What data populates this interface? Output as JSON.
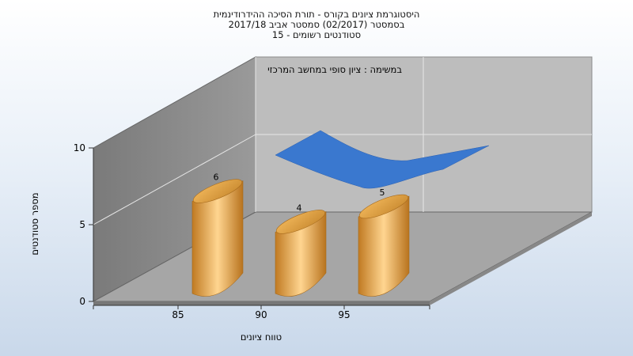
{
  "chart_data": {
    "type": "bar",
    "title_lines": [
      "היסטוגרמת ציונים בקורס - תורת הסיכה ההידרודינמית",
      "בסמסטר  (02/2017)  סמסטר אביב 2017/18",
      "סטודנטים רשומים - 15"
    ],
    "annotation": "במשימה : ציון סופי במחשב המרכזי",
    "xlabel": "טווח ציונים",
    "ylabel": "מספר סטודנטים",
    "categories": [
      "85",
      "90",
      "95"
    ],
    "values": [
      6,
      4,
      5
    ],
    "curve": {
      "x": [
        82,
        86,
        90,
        94,
        98
      ],
      "y": [
        9.5,
        11,
        8.5,
        7.5,
        10
      ]
    },
    "ylim": [
      0,
      10
    ],
    "yticks": [
      0,
      5,
      10
    ],
    "xticks": [
      "85",
      "90",
      "95"
    ],
    "grid": true,
    "colors": {
      "bar": "#e8a84a",
      "curve": "#3a7bd5",
      "floor": "#a4a4a4",
      "back_wall": "#bfbfbf",
      "side_wall": "#8a8a8a"
    }
  }
}
